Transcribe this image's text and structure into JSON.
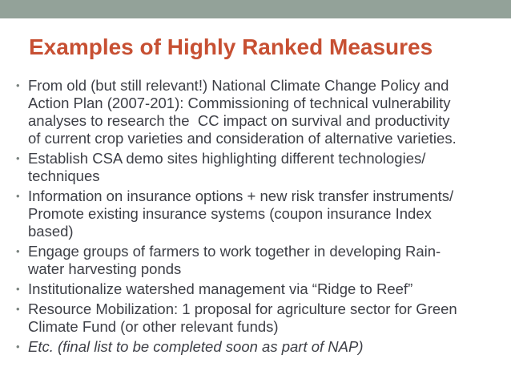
{
  "slide": {
    "title": "Examples of Highly Ranked Measures",
    "bullet_glyph": "•",
    "colors": {
      "background": "#FFFFFF",
      "top_bar": "#93A299",
      "title": "#C75033",
      "body_text": "#3D3F46",
      "bullet": "#7A837F"
    },
    "bullets": [
      {
        "style": "normal",
        "text": "From old (but still relevant!) National Climate Change Policy and\nAction Plan (2007-201): Commissioning of technical vulnerability\nanalyses to research the  CC impact on survival and productivity\nof current crop varieties and consideration of alternative varieties."
      },
      {
        "style": "normal",
        "text": "Establish CSA demo sites highlighting different technologies/\ntechniques"
      },
      {
        "style": "normal",
        "text": "Information on insurance options + new risk transfer instruments/\nPromote existing insurance systems (coupon insurance Index\nbased)"
      },
      {
        "style": "normal",
        "text": "Engage groups of farmers to work together in developing Rain-\nwater harvesting ponds"
      },
      {
        "style": "normal",
        "text": "Institutionalize watershed management via “Ridge to Reef”"
      },
      {
        "style": "normal",
        "text": "Resource Mobilization: 1 proposal for agriculture sector for Green\nClimate Fund (or other relevant funds)"
      },
      {
        "style": "italic",
        "text": "Etc. (final list to be completed soon as part of NAP)"
      }
    ]
  }
}
